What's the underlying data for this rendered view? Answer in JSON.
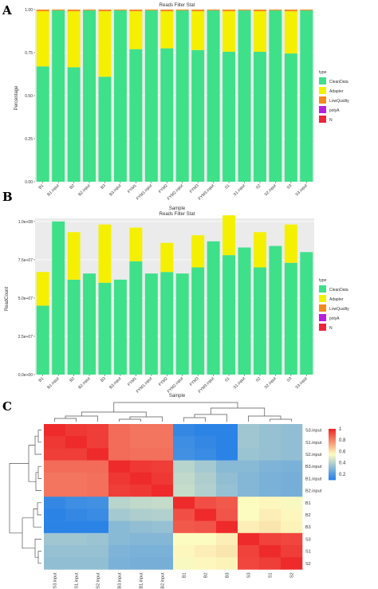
{
  "colors": {
    "CleanData": "#3ee08a",
    "Adapter": "#f5f000",
    "LowQuality": "#f58a1e",
    "polyA": "#b81ee0",
    "N": "#f0243a",
    "panel_bg": "#ebebeb",
    "grid": "#ffffff"
  },
  "chart_data": [
    {
      "panel": "A",
      "type": "bar",
      "stacked": true,
      "title": "Reads Filter Stat",
      "xlabel": "Sample",
      "ylabel": "Percentage",
      "ylim": [
        0,
        1
      ],
      "yticks": [
        "0.00",
        "0.25",
        "0.50",
        "0.75",
        "1.00"
      ],
      "ytick_values": [
        0,
        0.25,
        0.5,
        0.75,
        1.0
      ],
      "categories": [
        "B1",
        "B1.input",
        "B2",
        "B2.input",
        "B3",
        "B3.input",
        "FYM1",
        "FYM1.input",
        "FYM2",
        "FYM2.input",
        "FYM3",
        "FYM3.input",
        "S1",
        "S1.input",
        "S2",
        "S2.input",
        "S3",
        "S3.input"
      ],
      "series": [
        {
          "name": "CleanData",
          "values": [
            0.67,
            0.995,
            0.665,
            0.995,
            0.61,
            0.995,
            0.77,
            0.995,
            0.775,
            0.995,
            0.765,
            0.995,
            0.755,
            0.995,
            0.755,
            0.995,
            0.745,
            0.995
          ]
        },
        {
          "name": "Adapter",
          "values": [
            0.32,
            0.0,
            0.325,
            0.0,
            0.38,
            0.0,
            0.22,
            0.0,
            0.215,
            0.0,
            0.225,
            0.0,
            0.235,
            0.0,
            0.235,
            0.0,
            0.245,
            0.0
          ]
        },
        {
          "name": "LowQuality",
          "values": [
            0.01,
            0.005,
            0.01,
            0.005,
            0.01,
            0.005,
            0.01,
            0.005,
            0.01,
            0.005,
            0.01,
            0.005,
            0.01,
            0.005,
            0.01,
            0.005,
            0.01,
            0.005
          ]
        }
      ],
      "legend": {
        "title": "type",
        "entries": [
          "CleanData",
          "Adapter",
          "LowQuality",
          "polyA",
          "N"
        ],
        "position": "right"
      },
      "grid": true
    },
    {
      "panel": "B",
      "type": "bar",
      "stacked": true,
      "title": "Reads Filter Stat",
      "xlabel": "Sample",
      "ylabel": "ReadCount",
      "ylim": [
        0,
        102000000
      ],
      "yticks": [
        "0.0e+00",
        "2.5e+07",
        "5.0e+07",
        "7.5e+07",
        "1.0e+08"
      ],
      "ytick_values": [
        0,
        25000000,
        50000000,
        75000000,
        100000000
      ],
      "categories": [
        "B1",
        "B1.input",
        "B2",
        "B2.input",
        "B3",
        "B3.input",
        "FYM1",
        "FYM1.input",
        "FYM2",
        "FYM2.input",
        "FYM3",
        "FYM3.input",
        "S1",
        "S1.input",
        "S2",
        "S2.input",
        "S3",
        "S3.input"
      ],
      "series": [
        {
          "name": "CleanData",
          "values": [
            45000000,
            100000000,
            62000000,
            66000000,
            60000000,
            62000000,
            74000000,
            66000000,
            67000000,
            66000000,
            70000000,
            87000000,
            78000000,
            83000000,
            70000000,
            84000000,
            73000000,
            80000000
          ]
        },
        {
          "name": "Adapter",
          "values": [
            22000000,
            0,
            31000000,
            0,
            38000000,
            0,
            22000000,
            0,
            19000000,
            0,
            21000000,
            0,
            26000000,
            0,
            23000000,
            0,
            25000000,
            0
          ]
        }
      ],
      "legend": {
        "title": "type",
        "entries": [
          "CleanData",
          "Adapter",
          "LowQuality",
          "polyA",
          "N"
        ],
        "position": "right"
      },
      "grid": true
    },
    {
      "panel": "C",
      "type": "heatmap",
      "columns": [
        "S3.input",
        "S1.input",
        "S2.input",
        "B3.input",
        "B1.input",
        "B2.input",
        "B1",
        "B2",
        "B3",
        "S3",
        "S1",
        "S2"
      ],
      "rows": [
        "S3.input",
        "S1.input",
        "S2.input",
        "B3.input",
        "B1.input",
        "B2.input",
        "B1",
        "B2",
        "B3",
        "S3",
        "S1",
        "S2"
      ],
      "values": [
        [
          1.0,
          0.97,
          0.96,
          0.86,
          0.84,
          0.84,
          0.12,
          0.1,
          0.05,
          0.35,
          0.33,
          0.32
        ],
        [
          0.97,
          1.0,
          0.96,
          0.86,
          0.84,
          0.84,
          0.14,
          0.12,
          0.06,
          0.35,
          0.33,
          0.32
        ],
        [
          0.96,
          0.96,
          1.0,
          0.86,
          0.85,
          0.85,
          0.15,
          0.13,
          0.07,
          0.34,
          0.33,
          0.32
        ],
        [
          0.86,
          0.86,
          0.86,
          1.0,
          0.97,
          0.96,
          0.4,
          0.36,
          0.3,
          0.3,
          0.28,
          0.27
        ],
        [
          0.84,
          0.84,
          0.85,
          0.97,
          1.0,
          0.97,
          0.42,
          0.38,
          0.32,
          0.29,
          0.27,
          0.26
        ],
        [
          0.84,
          0.84,
          0.85,
          0.96,
          0.97,
          1.0,
          0.43,
          0.39,
          0.33,
          0.29,
          0.27,
          0.26
        ],
        [
          0.12,
          0.14,
          0.15,
          0.4,
          0.42,
          0.43,
          1.0,
          0.92,
          0.9,
          0.55,
          0.56,
          0.54
        ],
        [
          0.1,
          0.12,
          0.13,
          0.36,
          0.38,
          0.39,
          0.92,
          1.0,
          0.91,
          0.55,
          0.58,
          0.56
        ],
        [
          0.05,
          0.06,
          0.07,
          0.3,
          0.32,
          0.33,
          0.9,
          0.91,
          1.0,
          0.58,
          0.6,
          0.57
        ],
        [
          0.35,
          0.35,
          0.34,
          0.3,
          0.29,
          0.29,
          0.55,
          0.55,
          0.58,
          1.0,
          0.95,
          0.94
        ],
        [
          0.33,
          0.33,
          0.33,
          0.28,
          0.27,
          0.27,
          0.56,
          0.58,
          0.6,
          0.95,
          1.0,
          0.96
        ],
        [
          0.32,
          0.32,
          0.32,
          0.27,
          0.26,
          0.26,
          0.54,
          0.56,
          0.57,
          0.94,
          0.96,
          1.0
        ]
      ],
      "scale": {
        "min": 0.1,
        "max": 1.0,
        "ticks": [
          "1",
          "0.8",
          "0.6",
          "0.4",
          "0.2"
        ],
        "tick_values": [
          1.0,
          0.8,
          0.6,
          0.4,
          0.2
        ]
      },
      "colors": {
        "low": "#2b83e6",
        "mid": "#fdfcc0",
        "high": "#ee2a2a"
      }
    }
  ],
  "panel_labels": {
    "a": "A",
    "b": "B",
    "c": "C"
  }
}
